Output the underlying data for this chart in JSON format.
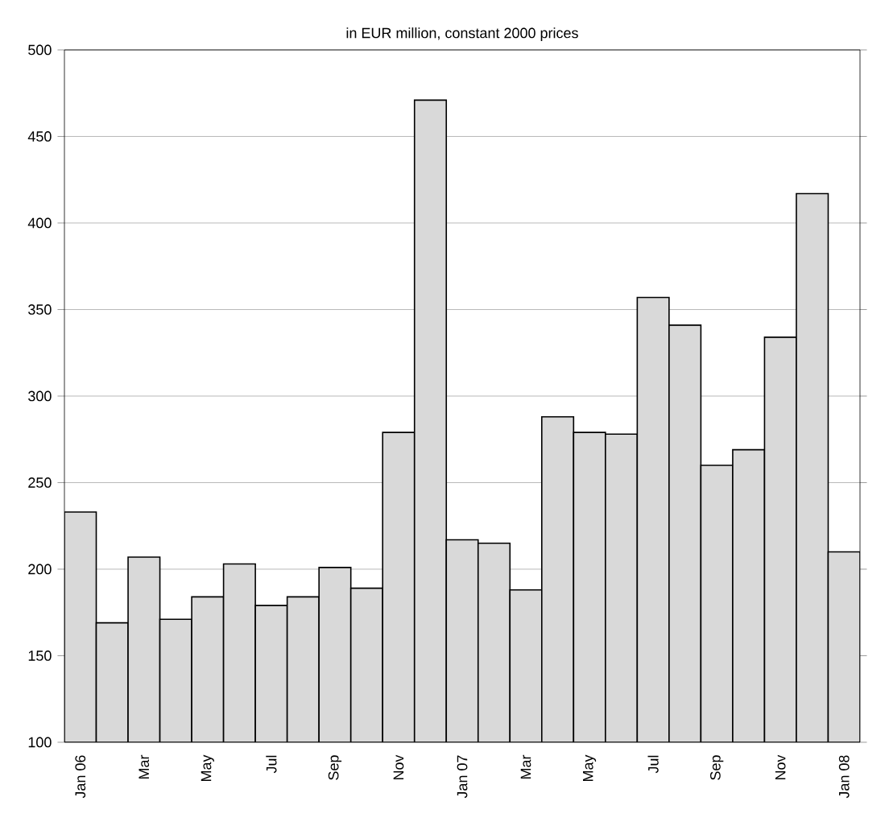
{
  "chart_data": {
    "type": "bar",
    "title": "in EUR million, constant 2000 prices",
    "categories": [
      "Jan 06",
      null,
      "Mar",
      null,
      "May",
      null,
      "Jul",
      null,
      "Sep",
      null,
      "Nov",
      null,
      "Jan 07",
      null,
      "Mar",
      null,
      "May",
      null,
      "Jul",
      null,
      "Sep",
      null,
      "Nov",
      null,
      "Jan 08"
    ],
    "values": [
      233,
      169,
      207,
      171,
      184,
      203,
      179,
      184,
      201,
      189,
      279,
      471,
      217,
      215,
      188,
      288,
      279,
      278,
      357,
      341,
      260,
      269,
      334,
      417,
      210
    ],
    "color": "#d9d9d9",
    "ylim": [
      100,
      500
    ],
    "yticks": [
      100,
      150,
      200,
      250,
      300,
      350,
      400,
      450,
      500
    ],
    "grid": "y"
  }
}
